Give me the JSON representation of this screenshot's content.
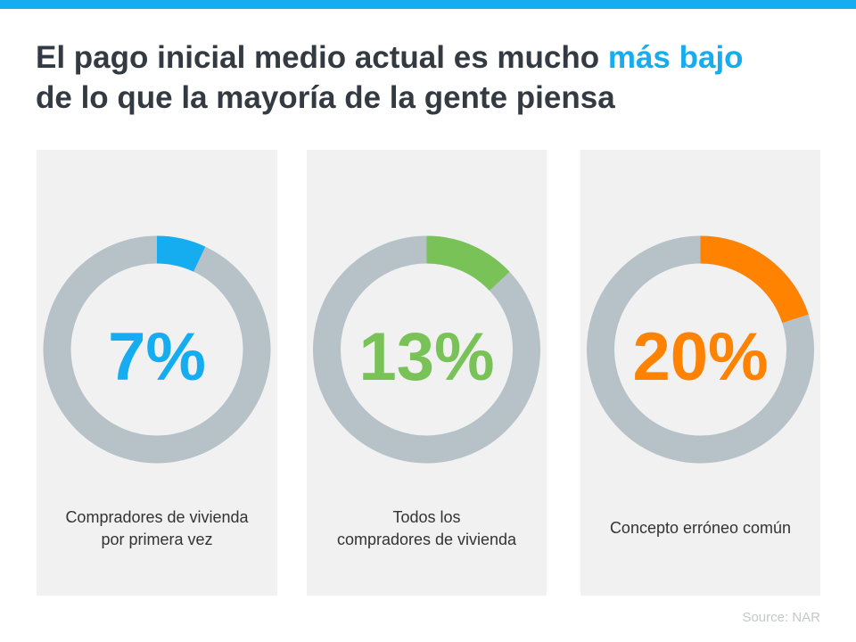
{
  "header": {
    "title_part1": "El pago inicial medio actual es mucho ",
    "title_highlight": "más bajo",
    "title_part2": "de lo que la mayoría de la gente piensa"
  },
  "colors": {
    "accent": "#15adef",
    "track": "#b6c2c8",
    "panel": "#f1f1f1"
  },
  "chart_data": {
    "type": "pie",
    "subtype": "donut",
    "items": [
      {
        "value": 7,
        "display": "7%",
        "label_lines": [
          "Compradores de vivienda",
          "por primera vez"
        ],
        "color": "#15adef"
      },
      {
        "value": 13,
        "display": "13%",
        "label_lines": [
          "Todos los",
          "compradores de vivienda"
        ],
        "color": "#78c257"
      },
      {
        "value": 20,
        "display": "20%",
        "label_lines": [
          "Concepto erróneo común"
        ],
        "color": "#ff8200"
      }
    ]
  },
  "footer": {
    "source": "Source: NAR"
  }
}
